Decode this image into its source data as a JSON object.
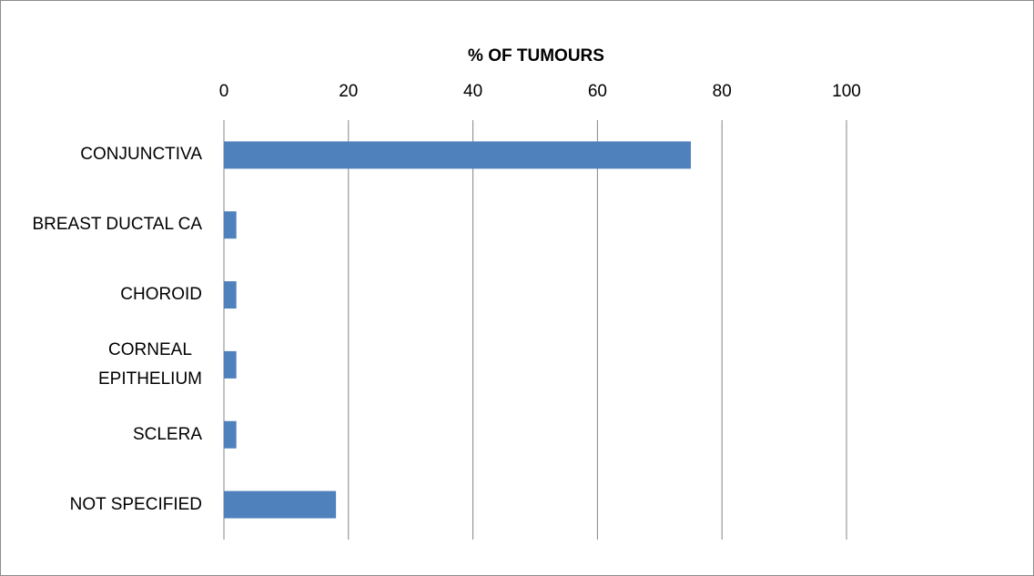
{
  "chart_data": {
    "type": "bar",
    "orientation": "horizontal",
    "xlabel": "% OF TUMOURS",
    "categories": [
      "CONJUNCTIVA",
      "BREAST DUCTAL CA",
      "CHOROID",
      "CORNEAL\nEPITHELIUM",
      "SCLERA",
      "NOT SPECIFIED"
    ],
    "values": [
      75,
      2,
      2,
      2,
      2,
      18
    ],
    "color": "#4f81bd",
    "xlim": [
      0,
      100
    ],
    "xticks": [
      0,
      20,
      40,
      60,
      80,
      100
    ],
    "grid": true
  }
}
